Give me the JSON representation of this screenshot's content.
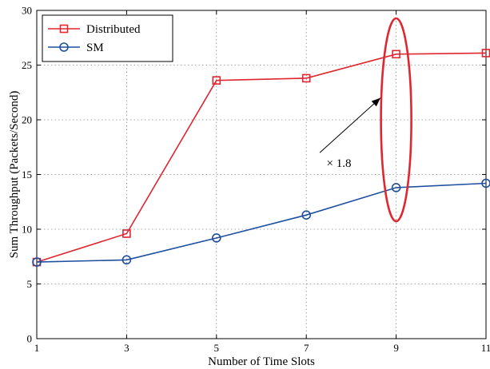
{
  "chart_data": {
    "type": "line",
    "title": "",
    "xlabel": "Number of Time Slots",
    "ylabel": "Sum Throughput (Packets/Second)",
    "xlim": [
      1,
      11
    ],
    "ylim": [
      0,
      30
    ],
    "xticks": [
      1,
      3,
      5,
      7,
      9,
      11
    ],
    "yticks": [
      0,
      5,
      10,
      15,
      20,
      25,
      30
    ],
    "grid": true,
    "legend_position": "top-left",
    "x": [
      1,
      3,
      5,
      7,
      9,
      11
    ],
    "series": [
      {
        "name": "Distributed",
        "color": "#e0262f",
        "marker": "square",
        "values": [
          7.0,
          9.6,
          23.6,
          23.8,
          26.0,
          26.1
        ]
      },
      {
        "name": "SM",
        "color": "#1f4fa0",
        "marker": "circle",
        "values": [
          7.0,
          7.2,
          9.2,
          11.3,
          13.8,
          14.2
        ]
      }
    ],
    "annotation": {
      "text": "× 1.8",
      "ellipse_color": "#e0262f",
      "ellipse_center": [
        9,
        20
      ],
      "arrow_from": [
        7.3,
        17.0
      ],
      "arrow_to": [
        8.65,
        22.0
      ],
      "text_position": [
        7.45,
        15.7
      ]
    }
  }
}
